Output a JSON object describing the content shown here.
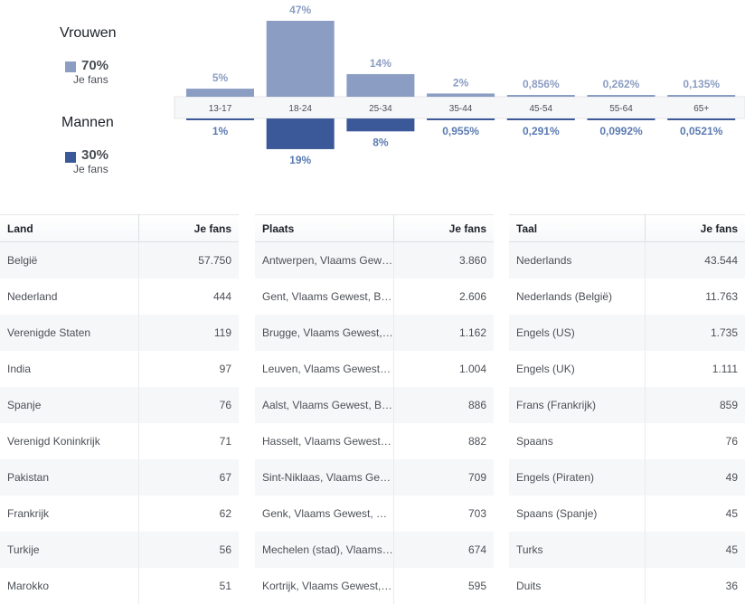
{
  "legend": {
    "women": {
      "title": "Vrouwen",
      "pct": "70%",
      "sub": "Je fans",
      "color": "#8b9dc3"
    },
    "men": {
      "title": "Mannen",
      "pct": "30%",
      "sub": "Je fans",
      "color": "#3b5998"
    }
  },
  "chart_data": {
    "type": "bar",
    "categories": [
      "13-17",
      "18-24",
      "25-34",
      "35-44",
      "45-54",
      "55-64",
      "65+"
    ],
    "series": [
      {
        "name": "Vrouwen",
        "values": [
          5,
          47,
          14,
          2,
          0.856,
          0.262,
          0.135
        ],
        "labels": [
          "5%",
          "47%",
          "14%",
          "2%",
          "0,856%",
          "0,262%",
          "0,135%"
        ]
      },
      {
        "name": "Mannen",
        "values": [
          1,
          19,
          8,
          0.955,
          0.291,
          0.0992,
          0.0521
        ],
        "labels": [
          "1%",
          "19%",
          "8%",
          "0,955%",
          "0,291%",
          "0,0992%",
          "0,0521%"
        ]
      }
    ],
    "ylim": [
      0,
      47
    ]
  },
  "tables": [
    {
      "col1": "Land",
      "col2": "Je fans",
      "rows": [
        [
          "België",
          "57.750"
        ],
        [
          "Nederland",
          "444"
        ],
        [
          "Verenigde Staten",
          "119"
        ],
        [
          "India",
          "97"
        ],
        [
          "Spanje",
          "76"
        ],
        [
          "Verenigd Koninkrijk",
          "71"
        ],
        [
          "Pakistan",
          "67"
        ],
        [
          "Frankrijk",
          "62"
        ],
        [
          "Turkije",
          "56"
        ],
        [
          "Marokko",
          "51"
        ]
      ]
    },
    {
      "col1": "Plaats",
      "col2": "Je fans",
      "rows": [
        [
          "Antwerpen, Vlaams Gewest, België",
          "3.860"
        ],
        [
          "Gent, Vlaams Gewest, België",
          "2.606"
        ],
        [
          "Brugge, Vlaams Gewest, België",
          "1.162"
        ],
        [
          "Leuven, Vlaams Gewest, België",
          "1.004"
        ],
        [
          "Aalst, Vlaams Gewest, België",
          "886"
        ],
        [
          "Hasselt, Vlaams Gewest, België",
          "882"
        ],
        [
          "Sint-Niklaas, Vlaams Gewest, België",
          "709"
        ],
        [
          "Genk, Vlaams Gewest, België",
          "703"
        ],
        [
          "Mechelen (stad), Vlaams Gewest, België",
          "674"
        ],
        [
          "Kortrijk, Vlaams Gewest, België",
          "595"
        ]
      ]
    },
    {
      "col1": "Taal",
      "col2": "Je fans",
      "rows": [
        [
          "Nederlands",
          "43.544"
        ],
        [
          "Nederlands (België)",
          "11.763"
        ],
        [
          "Engels (US)",
          "1.735"
        ],
        [
          "Engels (UK)",
          "1.111"
        ],
        [
          "Frans (Frankrijk)",
          "859"
        ],
        [
          "Spaans",
          "76"
        ],
        [
          "Engels (Piraten)",
          "49"
        ],
        [
          "Spaans (Spanje)",
          "45"
        ],
        [
          "Turks",
          "45"
        ],
        [
          "Duits",
          "36"
        ]
      ]
    }
  ]
}
